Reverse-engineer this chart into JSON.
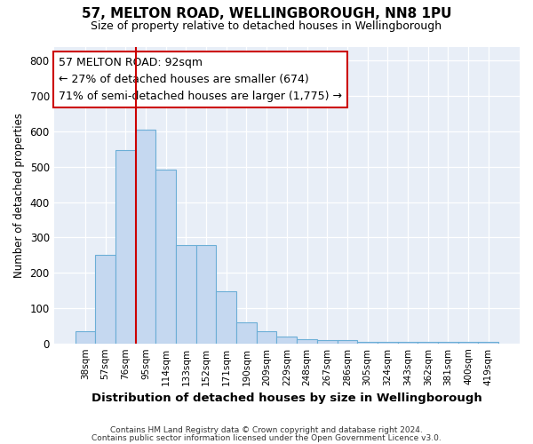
{
  "title_line1": "57, MELTON ROAD, WELLINGBOROUGH, NN8 1PU",
  "title_line2": "Size of property relative to detached houses in Wellingborough",
  "xlabel": "Distribution of detached houses by size in Wellingborough",
  "ylabel": "Number of detached properties",
  "bin_labels": [
    "38sqm",
    "57sqm",
    "76sqm",
    "95sqm",
    "114sqm",
    "133sqm",
    "152sqm",
    "171sqm",
    "190sqm",
    "209sqm",
    "229sqm",
    "248sqm",
    "267sqm",
    "286sqm",
    "305sqm",
    "324sqm",
    "343sqm",
    "362sqm",
    "381sqm",
    "400sqm",
    "419sqm"
  ],
  "bar_heights": [
    35,
    250,
    548,
    605,
    493,
    278,
    278,
    148,
    60,
    35,
    20,
    13,
    10,
    10,
    5,
    3,
    3,
    3,
    3,
    5,
    5
  ],
  "bar_color": "#c5d8f0",
  "bar_edge_color": "#6baed6",
  "vline_color": "#cc0000",
  "annotation_text": "57 MELTON ROAD: 92sqm\n← 27% of detached houses are smaller (674)\n71% of semi-detached houses are larger (1,775) →",
  "annotation_box_color": "#ffffff",
  "annotation_border_color": "#cc0000",
  "footer_line1": "Contains HM Land Registry data © Crown copyright and database right 2024.",
  "footer_line2": "Contains public sector information licensed under the Open Government Licence v3.0.",
  "fig_background_color": "#ffffff",
  "plot_bg_color": "#e8eef7",
  "ylim": [
    0,
    840
  ],
  "yticks": [
    0,
    100,
    200,
    300,
    400,
    500,
    600,
    700,
    800
  ],
  "vline_bin_index": 3
}
